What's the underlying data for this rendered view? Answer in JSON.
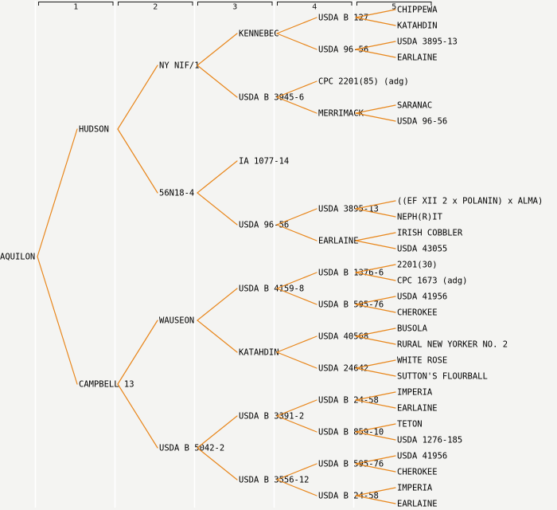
{
  "diagram_type": "pedigree-tree",
  "root_variety": "AQUILON",
  "generation_headers": [
    "1",
    "2",
    "3",
    "4",
    "5"
  ],
  "colors": {
    "background": "#f4f4f2",
    "column_separator": "#ffffff",
    "edge_line": "#e8861b",
    "node_text": "#000000",
    "header_line": "#1a1a1a"
  },
  "tree": {
    "name": "AQUILON",
    "children": [
      {
        "name": "HUDSON",
        "children": [
          {
            "name": "NY NIF/1",
            "children": [
              {
                "name": "KENNEBEC",
                "children": [
                  {
                    "name": "USDA B 127",
                    "children": [
                      {
                        "name": "CHIPPEWA"
                      },
                      {
                        "name": "KATAHDIN"
                      }
                    ]
                  },
                  {
                    "name": "USDA 96-56",
                    "children": [
                      {
                        "name": "USDA 3895-13"
                      },
                      {
                        "name": "EARLAINE"
                      }
                    ]
                  }
                ]
              },
              {
                "name": "USDA B 3945-6",
                "children": [
                  {
                    "name": "CPC 2201(85) (adg)"
                  },
                  {
                    "name": "MERRIMACK",
                    "children": [
                      {
                        "name": "SARANAC"
                      },
                      {
                        "name": "USDA 96-56"
                      }
                    ]
                  }
                ]
              }
            ]
          },
          {
            "name": "56N18-4",
            "children": [
              {
                "name": "IA 1077-14"
              },
              {
                "name": "USDA 96-56",
                "children": [
                  {
                    "name": "USDA 3895-13",
                    "children": [
                      {
                        "name": "((EF XII 2 x POLANIN) x ALMA)"
                      },
                      {
                        "name": "NEPH(R)IT"
                      }
                    ]
                  },
                  {
                    "name": "EARLAINE",
                    "children": [
                      {
                        "name": "IRISH COBBLER"
                      },
                      {
                        "name": "USDA 43055"
                      }
                    ]
                  }
                ]
              }
            ]
          }
        ]
      },
      {
        "name": "CAMPBELL 13",
        "children": [
          {
            "name": "WAUSEON",
            "children": [
              {
                "name": "USDA B 4159-8",
                "children": [
                  {
                    "name": "USDA B 1376-6",
                    "children": [
                      {
                        "name": "2201(30)"
                      },
                      {
                        "name": "CPC 1673 (adg)"
                      }
                    ]
                  },
                  {
                    "name": "USDA B 595-76",
                    "children": [
                      {
                        "name": "USDA 41956"
                      },
                      {
                        "name": "CHEROKEE"
                      }
                    ]
                  }
                ]
              },
              {
                "name": "KATAHDIN",
                "children": [
                  {
                    "name": "USDA 40568",
                    "children": [
                      {
                        "name": "BUSOLA"
                      },
                      {
                        "name": "RURAL NEW YORKER NO. 2"
                      }
                    ]
                  },
                  {
                    "name": "USDA 24642",
                    "children": [
                      {
                        "name": "WHITE ROSE"
                      },
                      {
                        "name": "SUTTON'S FLOURBALL"
                      }
                    ]
                  }
                ]
              }
            ]
          },
          {
            "name": "USDA B 5042-2",
            "children": [
              {
                "name": "USDA B 3391-2",
                "children": [
                  {
                    "name": "USDA B 24-58",
                    "children": [
                      {
                        "name": "IMPERIA"
                      },
                      {
                        "name": "EARLAINE"
                      }
                    ]
                  },
                  {
                    "name": "USDA B 859-10",
                    "children": [
                      {
                        "name": "TETON"
                      },
                      {
                        "name": "USDA 1276-185"
                      }
                    ]
                  }
                ]
              },
              {
                "name": "USDA B 3556-12",
                "children": [
                  {
                    "name": "USDA B 595-76",
                    "children": [
                      {
                        "name": "USDA 41956"
                      },
                      {
                        "name": "CHEROKEE"
                      }
                    ]
                  },
                  {
                    "name": "USDA B 24-58",
                    "children": [
                      {
                        "name": "IMPERIA"
                      },
                      {
                        "name": "EARLAINE"
                      }
                    ]
                  }
                ]
              }
            ]
          }
        ]
      }
    ]
  }
}
